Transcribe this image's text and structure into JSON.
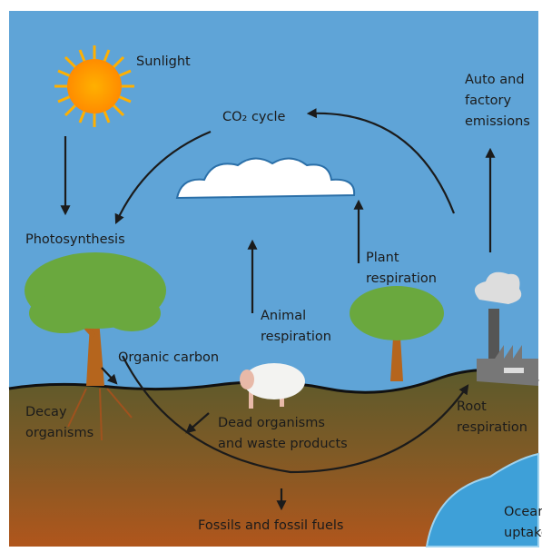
{
  "labels": [
    {
      "lines": [
        "Sunlight"
      ]
    },
    {
      "lines": [
        "CO₂ cycle"
      ]
    },
    {
      "lines": [
        "Auto and",
        "factory",
        "emissions"
      ]
    },
    {
      "lines": [
        "Photosynthesis"
      ]
    },
    {
      "lines": [
        "Plant",
        "respiration"
      ]
    },
    {
      "lines": [
        "Animal",
        "respiration"
      ]
    },
    {
      "lines": [
        "Organic carbon"
      ]
    },
    {
      "lines": [
        "Decay",
        "organisms"
      ]
    },
    {
      "lines": [
        "Dead organisms",
        "and waste products"
      ]
    },
    {
      "lines": [
        "Root",
        "respiration"
      ]
    },
    {
      "lines": [
        "Fossils and fossil fuels"
      ]
    },
    {
      "lines": [
        "Ocean",
        "uptake"
      ]
    }
  ]
}
